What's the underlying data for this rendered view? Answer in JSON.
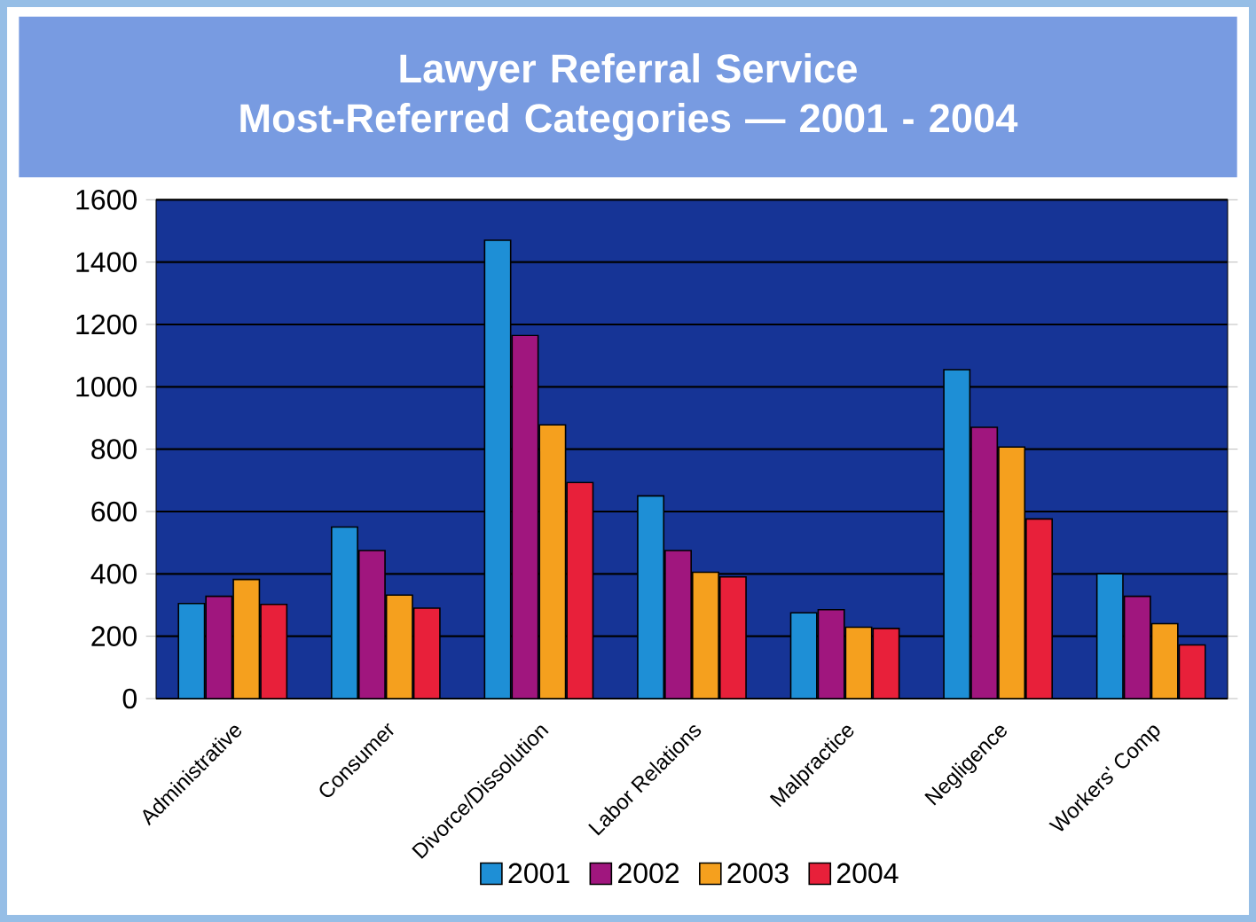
{
  "chart_data": {
    "type": "bar",
    "title": "Lawyer Referral Service\nMost-Referred Categories — 2001 - 2004",
    "categories": [
      "Administrative",
      "Consumer",
      "Divorce/Dissolution",
      "Labor Relations",
      "Malpractice",
      "Negligence",
      "Workers' Comp"
    ],
    "series": [
      {
        "name": "2001",
        "color": "#1e8fd6",
        "values": [
          305,
          550,
          1470,
          650,
          275,
          1055,
          400
        ]
      },
      {
        "name": "2002",
        "color": "#a0167e",
        "values": [
          328,
          475,
          1165,
          475,
          285,
          870,
          328
        ]
      },
      {
        "name": "2003",
        "color": "#f5a01e",
        "values": [
          382,
          332,
          878,
          405,
          229,
          807,
          240
        ]
      },
      {
        "name": "2004",
        "color": "#e8203a",
        "values": [
          302,
          290,
          693,
          390,
          225,
          576,
          172
        ]
      }
    ],
    "ylim": [
      0,
      1600
    ],
    "yticks": [
      0,
      200,
      400,
      600,
      800,
      1000,
      1200,
      1400,
      1600
    ],
    "grid": "y",
    "legend": "bottom"
  }
}
